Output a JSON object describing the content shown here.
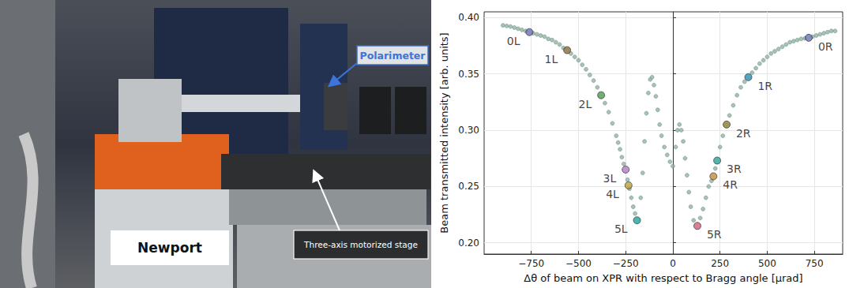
{
  "photo": {
    "labels": {
      "polarimeter": "Polarimeter",
      "stage": "Three-axis motorized stage",
      "brand": "Newport"
    }
  },
  "chart_data": {
    "type": "scatter",
    "x_label": "Δθ of beam on XPR with respect to Bragg angle [μrad]",
    "y_label": "Beam transmitted intensity [arb. units]",
    "xlim": [
      -1000,
      900
    ],
    "xticks": [
      {
        "value": -750,
        "label": "−750"
      },
      {
        "value": -500,
        "label": "−500"
      },
      {
        "value": -250,
        "label": "−250"
      },
      0,
      250,
      500,
      750
    ],
    "ylim": [
      0.19,
      0.405
    ],
    "yticks": [
      {
        "value": 0.2,
        "label": "0.20"
      },
      0.25,
      {
        "value": 0.3,
        "label": "0.30"
      },
      0.35,
      {
        "value": 0.4,
        "label": "0.40"
      }
    ],
    "grid": true,
    "series": [
      {
        "color": "#8fb3a3",
        "marker": "circle",
        "x": [
          -900,
          -880,
          -860,
          -840,
          -820,
          -800,
          -780,
          -740,
          -720,
          -700,
          -680,
          -660,
          -640,
          -620,
          -600,
          -580,
          -540,
          -520,
          -500,
          -480,
          -460,
          -440,
          -420,
          -400,
          -360,
          -340,
          -320,
          -300,
          -290,
          -280,
          -270,
          -260,
          -240,
          -230,
          -220,
          -210,
          -200,
          -170,
          -160,
          -150,
          -140,
          -130,
          -120,
          -110,
          -100,
          -90,
          -80,
          -70,
          -60,
          -45,
          -30,
          -15,
          0,
          15,
          25,
          35,
          45,
          55,
          65,
          75,
          85,
          95,
          110,
          145,
          160,
          175,
          190,
          205,
          225,
          250,
          265,
          300,
          320,
          340,
          360,
          380,
          420,
          440,
          460,
          480,
          500,
          520,
          540,
          560,
          580,
          600,
          620,
          640,
          660,
          680,
          700,
          740,
          760,
          780,
          800,
          820,
          840,
          860
        ],
        "y": [
          0.393,
          0.3925,
          0.392,
          0.391,
          0.39,
          0.389,
          0.388,
          0.386,
          0.385,
          0.384,
          0.383,
          0.381,
          0.38,
          0.378,
          0.376,
          0.373,
          0.368,
          0.365,
          0.362,
          0.358,
          0.354,
          0.349,
          0.344,
          0.338,
          0.324,
          0.316,
          0.306,
          0.295,
          0.289,
          0.283,
          0.276,
          0.27,
          0.256,
          0.248,
          0.24,
          0.232,
          0.226,
          0.24,
          0.262,
          0.29,
          0.315,
          0.333,
          0.345,
          0.347,
          0.34,
          0.33,
          0.318,
          0.305,
          0.295,
          0.285,
          0.278,
          0.272,
          0.268,
          0.285,
          0.3,
          0.305,
          0.3,
          0.29,
          0.275,
          0.26,
          0.245,
          0.232,
          0.22,
          0.222,
          0.23,
          0.24,
          0.25,
          0.255,
          0.266,
          0.285,
          0.295,
          0.313,
          0.322,
          0.331,
          0.338,
          0.343,
          0.351,
          0.355,
          0.359,
          0.362,
          0.365,
          0.368,
          0.37,
          0.372,
          0.374,
          0.376,
          0.378,
          0.379,
          0.38,
          0.381,
          0.3815,
          0.383,
          0.384,
          0.385,
          0.386,
          0.387,
          0.388,
          0.388
        ]
      }
    ],
    "points": [
      {
        "label": "0L",
        "x": -760,
        "y": 0.387,
        "color": "#6b6fb5"
      },
      {
        "label": "1L",
        "x": -560,
        "y": 0.371,
        "color": "#8a6d3b"
      },
      {
        "label": "2L",
        "x": -380,
        "y": 0.331,
        "color": "#4e9a4e"
      },
      {
        "label": "3L",
        "x": -250,
        "y": 0.265,
        "color": "#b07cc6"
      },
      {
        "label": "4L",
        "x": -235,
        "y": 0.251,
        "color": "#b8a040"
      },
      {
        "label": "5L",
        "x": -190,
        "y": 0.22,
        "color": "#20a39e"
      },
      {
        "label": "0R",
        "x": 720,
        "y": 0.382,
        "color": "#6a72b8"
      },
      {
        "label": "1R",
        "x": 400,
        "y": 0.347,
        "color": "#2b8fb0"
      },
      {
        "label": "2R",
        "x": 285,
        "y": 0.305,
        "color": "#8a7a30"
      },
      {
        "label": "3R",
        "x": 235,
        "y": 0.273,
        "color": "#2aa198"
      },
      {
        "label": "4R",
        "x": 215,
        "y": 0.259,
        "color": "#c08a3a"
      },
      {
        "label": "5R",
        "x": 130,
        "y": 0.215,
        "color": "#d0607a"
      }
    ]
  }
}
